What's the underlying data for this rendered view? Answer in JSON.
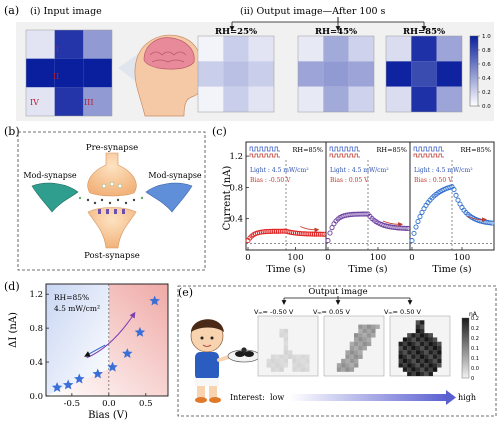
{
  "panel_labels": {
    "a": "(a)",
    "b": "(b)",
    "c": "(c)",
    "d": "(d)",
    "e": "(e)"
  },
  "panel_a": {
    "input_title": "(i) Input image",
    "output_title": "(ii) Output image—After 100 s",
    "input_labels": {
      "I": "I",
      "II": "II",
      "III": "III",
      "IV": "IV"
    },
    "input_grid": [
      [
        0.12,
        0.9,
        0.45
      ],
      [
        1.0,
        1.0,
        1.0
      ],
      [
        0.12,
        0.9,
        0.45
      ]
    ],
    "outputs": [
      {
        "label": "RH=25%",
        "grid": [
          [
            0.05,
            0.22,
            0.12
          ],
          [
            0.22,
            0.28,
            0.22
          ],
          [
            0.05,
            0.22,
            0.12
          ]
        ]
      },
      {
        "label": "RH=45%",
        "grid": [
          [
            0.1,
            0.38,
            0.2
          ],
          [
            0.4,
            0.45,
            0.4
          ],
          [
            0.1,
            0.38,
            0.2
          ]
        ]
      },
      {
        "label": "RH=85%",
        "grid": [
          [
            0.15,
            0.92,
            0.4
          ],
          [
            0.98,
            0.8,
            0.98
          ],
          [
            0.15,
            0.92,
            0.4
          ]
        ]
      }
    ],
    "colorbar_ticks": [
      "1.0",
      "0.8",
      "0.6",
      "0.4",
      "0.2",
      "0.0"
    ]
  },
  "panel_b": {
    "pre": "Pre-synapse",
    "post": "Post-synapse",
    "mod_left": "Mod-synapse",
    "mod_right": "Mod-synapse"
  },
  "chart_data": [
    {
      "type": "line",
      "panel": "c",
      "ylabel": "Current (nA)",
      "xlabel": "Time (s)",
      "yticks": [
        "0.4",
        "0.8",
        "1.2"
      ],
      "ylim": [
        0.0,
        1.38
      ],
      "xlim": [
        0,
        160
      ],
      "xticks": [
        "0",
        "100"
      ],
      "subplots": [
        {
          "rh": "RH=85%",
          "light": "Light : 4.5 mW/cm²",
          "bias": "Bias : -0.50 V",
          "color": "#e02424",
          "baseline": 0.12,
          "peak": 0.24,
          "end": 0.2
        },
        {
          "rh": "RH=85%",
          "light": "Light : 4.5 mW/cm²",
          "bias": "Bias : 0.05 V",
          "color": "#6a3fa0",
          "baseline": 0.12,
          "peak": 0.46,
          "end": 0.27
        },
        {
          "rh": "RH=85%",
          "light": "Light : 4.5 mW/cm²",
          "bias": "Bias : 0.50 V",
          "color": "#2f6fd0",
          "baseline": 0.12,
          "peak": 0.86,
          "end": 0.33
        }
      ]
    },
    {
      "type": "scatter",
      "panel": "d",
      "ylabel": "ΔI (nA)",
      "xlabel": "Bias (V)",
      "annotation_rh": "RH=85%",
      "annotation_light": "4.5 mW/cm²",
      "xlim": [
        -0.85,
        0.8
      ],
      "ylim": [
        0.0,
        1.32
      ],
      "xticks": [
        {
          "v": -0.5,
          "label": "-0.5"
        },
        {
          "v": 0.0,
          "label": "0.0"
        },
        {
          "v": 0.5,
          "label": "0.5"
        }
      ],
      "yticks": [
        {
          "v": 0.0,
          "label": "0.0"
        },
        {
          "v": 0.4,
          "label": "0.4"
        },
        {
          "v": 0.8,
          "label": "0.8"
        },
        {
          "v": 1.2,
          "label": "1.2"
        }
      ],
      "x": [
        -0.7,
        -0.55,
        -0.4,
        -0.15,
        0.05,
        0.25,
        0.42,
        0.62
      ],
      "y": [
        0.1,
        0.13,
        0.2,
        0.26,
        0.34,
        0.5,
        0.75,
        1.12
      ],
      "color": "#3a6fd8"
    }
  ],
  "panel_e": {
    "output_title": "Output image",
    "vm_labels": [
      "Vₘ= -0.50 V",
      "Vₘ= 0.05 V",
      "Vₘ= 0.50 V"
    ],
    "interest": "Interest:",
    "low": "low",
    "high": "high",
    "colorbar_unit": "nA",
    "colorbar_ticks": [
      "0.2",
      "0.2",
      "0.2",
      "0.1",
      "0.1",
      "0.0",
      "0"
    ]
  }
}
